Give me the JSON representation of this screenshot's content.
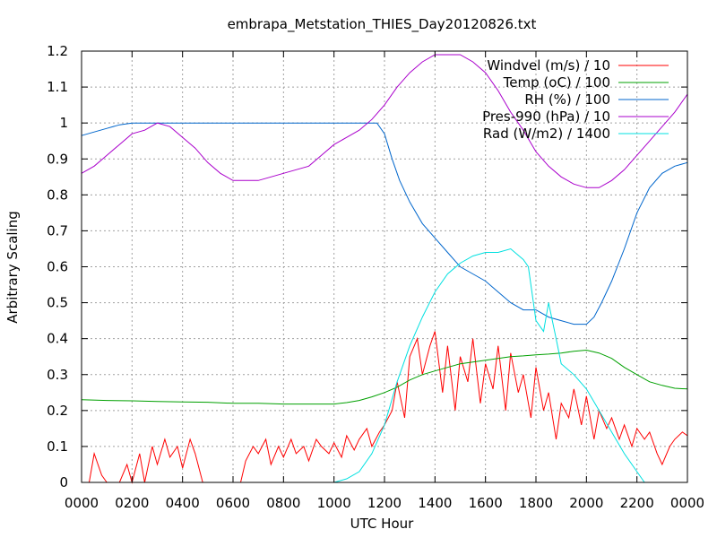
{
  "chart_data": {
    "type": "line",
    "title": "embrapa_Metstation_THIES_Day20120826.txt",
    "xlabel": "UTC Hour",
    "ylabel": "Arbitrary Scaling",
    "xlim": [
      0,
      24
    ],
    "ylim": [
      0,
      1.2
    ],
    "xticks": [
      {
        "value": 0,
        "label": "0000"
      },
      {
        "value": 2,
        "label": "0200"
      },
      {
        "value": 4,
        "label": "0400"
      },
      {
        "value": 6,
        "label": "0600"
      },
      {
        "value": 8,
        "label": "0800"
      },
      {
        "value": 10,
        "label": "1000"
      },
      {
        "value": 12,
        "label": "1200"
      },
      {
        "value": 14,
        "label": "1400"
      },
      {
        "value": 16,
        "label": "1600"
      },
      {
        "value": 18,
        "label": "1800"
      },
      {
        "value": 20,
        "label": "2000"
      },
      {
        "value": 22,
        "label": "2200"
      },
      {
        "value": 24,
        "label": "0000"
      }
    ],
    "yticks": [
      {
        "value": 0,
        "label": "0"
      },
      {
        "value": 0.1,
        "label": "0.1"
      },
      {
        "value": 0.2,
        "label": "0.2"
      },
      {
        "value": 0.3,
        "label": "0.3"
      },
      {
        "value": 0.4,
        "label": "0.4"
      },
      {
        "value": 0.5,
        "label": "0.5"
      },
      {
        "value": 0.6,
        "label": "0.6"
      },
      {
        "value": 0.7,
        "label": "0.7"
      },
      {
        "value": 0.8,
        "label": "0.8"
      },
      {
        "value": 0.9,
        "label": "0.9"
      },
      {
        "value": 1,
        "label": "1"
      },
      {
        "value": 1.1,
        "label": "1.1"
      },
      {
        "value": 1.2,
        "label": "1.2"
      }
    ],
    "grid": true,
    "legend_position": "top-right",
    "series": [
      {
        "name": "Windvel (m/s) / 10",
        "color": "#ff0000",
        "x": [
          0,
          0.3,
          0.5,
          0.8,
          1.0,
          1.3,
          1.5,
          1.8,
          2.0,
          2.3,
          2.5,
          2.8,
          3.0,
          3.3,
          3.5,
          3.8,
          4.0,
          4.3,
          4.5,
          4.8,
          5.0,
          5.3,
          5.5,
          5.8,
          6.0,
          6.3,
          6.5,
          6.8,
          7.0,
          7.3,
          7.5,
          7.8,
          8.0,
          8.3,
          8.5,
          8.8,
          9.0,
          9.3,
          9.5,
          9.8,
          10.0,
          10.3,
          10.5,
          10.8,
          11.0,
          11.3,
          11.5,
          11.8,
          12.0,
          12.3,
          12.5,
          12.8,
          13.0,
          13.3,
          13.5,
          13.8,
          14.0,
          14.3,
          14.5,
          14.8,
          15.0,
          15.3,
          15.5,
          15.8,
          16.0,
          16.3,
          16.5,
          16.8,
          17.0,
          17.3,
          17.5,
          17.8,
          18.0,
          18.3,
          18.5,
          18.8,
          19.0,
          19.3,
          19.5,
          19.8,
          20.0,
          20.3,
          20.5,
          20.8,
          21.0,
          21.3,
          21.5,
          21.8,
          22.0,
          22.3,
          22.5,
          22.8,
          23.0,
          23.3,
          23.5,
          23.8,
          24.0
        ],
        "values": [
          0,
          0,
          0.08,
          0.02,
          0,
          0,
          0,
          0.05,
          0,
          0.08,
          0,
          0.1,
          0.05,
          0.12,
          0.07,
          0.1,
          0.04,
          0.12,
          0.08,
          0,
          0,
          0,
          0,
          0,
          0,
          0,
          0.06,
          0.1,
          0.08,
          0.12,
          0.05,
          0.1,
          0.07,
          0.12,
          0.08,
          0.1,
          0.06,
          0.12,
          0.1,
          0.08,
          0.11,
          0.07,
          0.13,
          0.09,
          0.12,
          0.15,
          0.1,
          0.14,
          0.16,
          0.2,
          0.28,
          0.18,
          0.35,
          0.4,
          0.3,
          0.38,
          0.42,
          0.25,
          0.38,
          0.2,
          0.35,
          0.28,
          0.4,
          0.22,
          0.33,
          0.26,
          0.38,
          0.2,
          0.36,
          0.25,
          0.3,
          0.18,
          0.32,
          0.2,
          0.25,
          0.12,
          0.22,
          0.18,
          0.26,
          0.16,
          0.24,
          0.12,
          0.2,
          0.15,
          0.18,
          0.12,
          0.16,
          0.1,
          0.15,
          0.12,
          0.14,
          0.08,
          0.05,
          0.1,
          0.12,
          0.14,
          0.13
        ]
      },
      {
        "name": "Temp (oC) / 100",
        "color": "#00a000",
        "x": [
          0,
          1,
          2,
          3,
          4,
          5,
          6,
          7,
          8,
          9,
          10,
          10.5,
          11,
          11.5,
          12,
          12.5,
          13,
          13.5,
          14,
          14.5,
          15,
          15.5,
          16,
          16.5,
          17,
          17.5,
          18,
          18.5,
          19,
          19.5,
          20,
          20.5,
          21,
          21.5,
          22,
          22.5,
          23,
          23.5,
          24
        ],
        "values": [
          0.23,
          0.228,
          0.227,
          0.225,
          0.224,
          0.223,
          0.22,
          0.22,
          0.218,
          0.218,
          0.218,
          0.222,
          0.228,
          0.238,
          0.25,
          0.265,
          0.285,
          0.3,
          0.31,
          0.32,
          0.33,
          0.335,
          0.34,
          0.345,
          0.35,
          0.352,
          0.355,
          0.357,
          0.36,
          0.365,
          0.368,
          0.36,
          0.345,
          0.32,
          0.3,
          0.28,
          0.27,
          0.262,
          0.26
        ]
      },
      {
        "name": "RH (%) / 100",
        "color": "#0066cc",
        "x": [
          0,
          0.5,
          1,
          1.5,
          2,
          3,
          4,
          5,
          6,
          7,
          8,
          9,
          10,
          10.5,
          11,
          11.5,
          11.7,
          12,
          12.3,
          12.6,
          13,
          13.5,
          14,
          14.5,
          15,
          15.5,
          16,
          16.5,
          17,
          17.5,
          18,
          18.5,
          19,
          19.5,
          20,
          20.3,
          20.6,
          21,
          21.5,
          22,
          22.5,
          23,
          23.5,
          24
        ],
        "values": [
          0.965,
          0.975,
          0.985,
          0.995,
          1,
          1,
          1,
          1,
          1,
          1,
          1,
          1,
          1,
          1,
          1,
          1,
          1,
          0.97,
          0.9,
          0.84,
          0.78,
          0.72,
          0.68,
          0.64,
          0.6,
          0.58,
          0.56,
          0.53,
          0.5,
          0.48,
          0.48,
          0.46,
          0.45,
          0.44,
          0.44,
          0.46,
          0.5,
          0.56,
          0.65,
          0.75,
          0.82,
          0.86,
          0.88,
          0.89
        ]
      },
      {
        "name": "Pres-990 (hPa) / 10",
        "color": "#aa00cc",
        "x": [
          0,
          0.5,
          1,
          1.5,
          2,
          2.5,
          3,
          3.5,
          4,
          4.5,
          5,
          5.5,
          6,
          6.5,
          7,
          7.5,
          8,
          8.5,
          9,
          9.5,
          10,
          10.5,
          11,
          11.5,
          12,
          12.5,
          13,
          13.5,
          14,
          14.5,
          15,
          15.5,
          16,
          16.5,
          17,
          17.5,
          18,
          18.5,
          19,
          19.5,
          20,
          20.5,
          21,
          21.5,
          22,
          22.5,
          23,
          23.5,
          24
        ],
        "values": [
          0.86,
          0.88,
          0.91,
          0.94,
          0.97,
          0.98,
          1.0,
          0.99,
          0.96,
          0.93,
          0.89,
          0.86,
          0.84,
          0.84,
          0.84,
          0.85,
          0.86,
          0.87,
          0.88,
          0.91,
          0.94,
          0.96,
          0.98,
          1.01,
          1.05,
          1.1,
          1.14,
          1.17,
          1.19,
          1.19,
          1.19,
          1.17,
          1.14,
          1.09,
          1.03,
          0.98,
          0.92,
          0.88,
          0.85,
          0.83,
          0.82,
          0.82,
          0.84,
          0.87,
          0.91,
          0.95,
          0.99,
          1.03,
          1.08
        ]
      },
      {
        "name": "Rad (W/m2) / 1400",
        "color": "#00e0e0",
        "x": [
          0,
          10,
          10.5,
          11,
          11.5,
          12,
          12.5,
          13,
          13.5,
          14,
          14.5,
          15,
          15.5,
          16,
          16.5,
          17,
          17.5,
          17.7,
          18,
          18.3,
          18.5,
          18.8,
          19,
          19.5,
          20,
          20.5,
          21,
          21.5,
          22,
          22.3,
          24
        ],
        "values": [
          0,
          0,
          0.01,
          0.03,
          0.08,
          0.16,
          0.28,
          0.38,
          0.46,
          0.53,
          0.58,
          0.61,
          0.63,
          0.64,
          0.64,
          0.65,
          0.62,
          0.6,
          0.45,
          0.42,
          0.5,
          0.4,
          0.33,
          0.3,
          0.26,
          0.2,
          0.14,
          0.08,
          0.03,
          0,
          0
        ]
      }
    ]
  }
}
